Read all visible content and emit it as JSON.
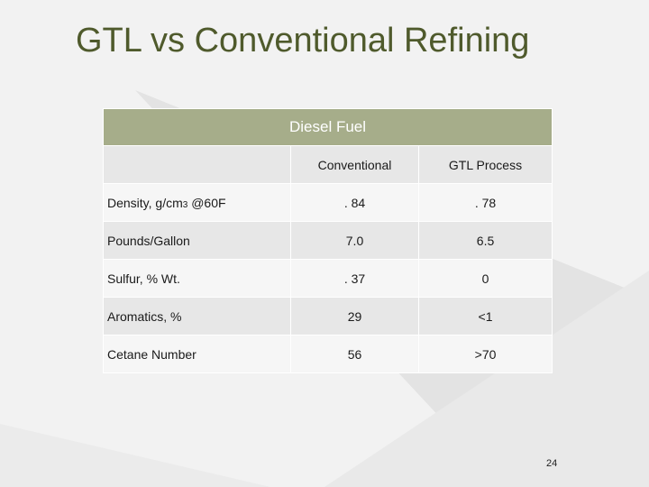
{
  "slide": {
    "title": "GTL vs Conventional Refining",
    "page_number": "24"
  },
  "table": {
    "header": "Diesel Fuel",
    "columns": [
      "Conventional",
      "GTL Process"
    ],
    "rows": [
      {
        "label_main": "Density, g/cm",
        "label_sub": "3",
        "label_rest": " @60F",
        "conventional": ". 84",
        "gtl": ". 78"
      },
      {
        "label": "Pounds/Gallon",
        "conventional": "7.0",
        "gtl": "6.5"
      },
      {
        "label": "Sulfur, % Wt.",
        "conventional": ". 37",
        "gtl": "0"
      },
      {
        "label": "Aromatics, %",
        "conventional": "29",
        "gtl": "<1"
      },
      {
        "label": "Cetane Number",
        "conventional": "56",
        "gtl": ">70"
      }
    ]
  },
  "colors": {
    "title": "#4f5a2c",
    "header_bg": "#a6ad8a",
    "row_odd": "#e7e7e7",
    "row_even": "#f6f6f6"
  }
}
